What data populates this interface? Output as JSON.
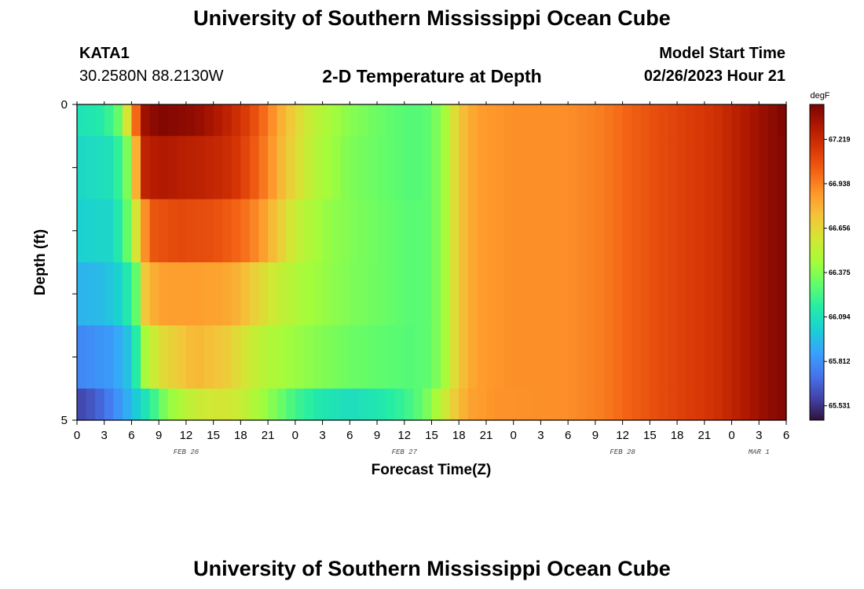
{
  "header": {
    "title": "University of Southern Mississippi Ocean Cube",
    "station": "KATA1",
    "coords": "30.2580N  88.2130W",
    "plot_title": "2-D Temperature at Depth",
    "model_label": "Model Start Time",
    "model_time": "02/26/2023 Hour 21"
  },
  "footer": {
    "title": "University of Southern Mississippi Ocean Cube"
  },
  "chart_data": {
    "type": "heatmap",
    "xlabel": "Forecast Time(Z)",
    "ylabel": "Depth (ft)",
    "x_unit": "hours since FEB 26 00Z",
    "xlim": [
      0,
      78
    ],
    "ylim": [
      0,
      5
    ],
    "x_tick_values": [
      0,
      3,
      6,
      9,
      12,
      15,
      18,
      21,
      24,
      27,
      30,
      33,
      36,
      39,
      42,
      45,
      48,
      51,
      54,
      57,
      60,
      63,
      66,
      69,
      72,
      75,
      78
    ],
    "x_tick_labels": [
      "0",
      "3",
      "6",
      "9",
      "12",
      "15",
      "18",
      "21",
      "0",
      "3",
      "6",
      "9",
      "12",
      "15",
      "18",
      "21",
      "0",
      "3",
      "6",
      "9",
      "12",
      "15",
      "18",
      "21",
      "0",
      "3",
      "6"
    ],
    "day_labels": [
      {
        "label": "FEB 26",
        "x": 12
      },
      {
        "label": "FEB 27",
        "x": 36
      },
      {
        "label": "FEB 28",
        "x": 60
      },
      {
        "label": "MAR 1",
        "x": 75
      }
    ],
    "y_tick_values": [
      0,
      1,
      2,
      3,
      4,
      5
    ],
    "y_tick_labels": [
      "0",
      "",
      "",
      "",
      "",
      "5"
    ],
    "depth_layers": [
      0,
      0.5,
      1.5,
      2.5,
      3.5,
      4.5,
      5
    ],
    "colorbar": {
      "unit": "degF",
      "vmin": 65.44,
      "vmax": 67.44,
      "tick_values": [
        65.531,
        65.812,
        66.094,
        66.375,
        66.656,
        66.938,
        67.219
      ],
      "tick_labels": [
        "65.531",
        "65.812",
        "66.094",
        "66.375",
        "66.656",
        "66.938",
        "67.219"
      ],
      "colormap": [
        "#30123b",
        "#4145ab",
        "#4675ed",
        "#39a2fc",
        "#1bcfd4",
        "#24eca6",
        "#61fc6c",
        "#a4fc3b",
        "#d1e834",
        "#f3c63a",
        "#fe9b2d",
        "#f36315",
        "#d93806",
        "#b11901",
        "#7a0402"
      ]
    },
    "layer_profiles": [
      {
        "depth_range": [
          0,
          0.5
        ],
        "points": [
          [
            0,
            66.1
          ],
          [
            3,
            66.15
          ],
          [
            4.5,
            66.3
          ],
          [
            5.5,
            66.6
          ],
          [
            6.5,
            67.0
          ],
          [
            7.5,
            67.35
          ],
          [
            9,
            67.42
          ],
          [
            13,
            67.38
          ],
          [
            16,
            67.28
          ],
          [
            19,
            67.12
          ],
          [
            21,
            66.95
          ],
          [
            23,
            66.75
          ],
          [
            26,
            66.52
          ],
          [
            30,
            66.38
          ],
          [
            34,
            66.3
          ],
          [
            37,
            66.26
          ],
          [
            39,
            66.3
          ],
          [
            40.5,
            66.45
          ],
          [
            42,
            66.72
          ],
          [
            44,
            66.86
          ],
          [
            48,
            66.9
          ],
          [
            54,
            66.9
          ],
          [
            58,
            66.95
          ],
          [
            62,
            67.05
          ],
          [
            66,
            67.12
          ],
          [
            70,
            67.18
          ],
          [
            73,
            67.28
          ],
          [
            76,
            67.38
          ],
          [
            77.5,
            67.42
          ],
          [
            78,
            67.42
          ]
        ]
      },
      {
        "depth_range": [
          0.5,
          1.5
        ],
        "points": [
          [
            0,
            66.05
          ],
          [
            4,
            66.1
          ],
          [
            5.5,
            66.35
          ],
          [
            6.5,
            66.8
          ],
          [
            7.5,
            67.25
          ],
          [
            9,
            67.3
          ],
          [
            14,
            67.25
          ],
          [
            17,
            67.2
          ],
          [
            19,
            67.08
          ],
          [
            21,
            66.92
          ],
          [
            23,
            66.72
          ],
          [
            26,
            66.5
          ],
          [
            30,
            66.36
          ],
          [
            34,
            66.3
          ],
          [
            37,
            66.26
          ],
          [
            39,
            66.3
          ],
          [
            40.5,
            66.45
          ],
          [
            42,
            66.72
          ],
          [
            44,
            66.86
          ],
          [
            48,
            66.9
          ],
          [
            54,
            66.9
          ],
          [
            58,
            66.95
          ],
          [
            62,
            67.05
          ],
          [
            66,
            67.12
          ],
          [
            70,
            67.18
          ],
          [
            73,
            67.28
          ],
          [
            76,
            67.38
          ],
          [
            78,
            67.42
          ]
        ]
      },
      {
        "depth_range": [
          1.5,
          2.5
        ],
        "points": [
          [
            0,
            66.02
          ],
          [
            4,
            66.05
          ],
          [
            5.5,
            66.3
          ],
          [
            6.5,
            66.6
          ],
          [
            8,
            67.05
          ],
          [
            11,
            67.1
          ],
          [
            15,
            67.08
          ],
          [
            18,
            67.0
          ],
          [
            20,
            66.9
          ],
          [
            22,
            66.72
          ],
          [
            24,
            66.55
          ],
          [
            27,
            66.42
          ],
          [
            31,
            66.35
          ],
          [
            35,
            66.3
          ],
          [
            37,
            66.27
          ],
          [
            39,
            66.3
          ],
          [
            40.5,
            66.45
          ],
          [
            42,
            66.72
          ],
          [
            44,
            66.86
          ],
          [
            48,
            66.9
          ],
          [
            54,
            66.9
          ],
          [
            58,
            66.95
          ],
          [
            62,
            67.05
          ],
          [
            66,
            67.12
          ],
          [
            70,
            67.18
          ],
          [
            73,
            67.28
          ],
          [
            76,
            67.38
          ],
          [
            78,
            67.42
          ]
        ]
      },
      {
        "depth_range": [
          2.5,
          3.5
        ],
        "points": [
          [
            0,
            65.92
          ],
          [
            3,
            65.95
          ],
          [
            5,
            66.05
          ],
          [
            6.5,
            66.3
          ],
          [
            7.5,
            66.72
          ],
          [
            9,
            66.85
          ],
          [
            13,
            66.86
          ],
          [
            16,
            66.84
          ],
          [
            18,
            66.78
          ],
          [
            20,
            66.66
          ],
          [
            22,
            66.55
          ],
          [
            25,
            66.45
          ],
          [
            30,
            66.36
          ],
          [
            35,
            66.3
          ],
          [
            37,
            66.27
          ],
          [
            39,
            66.3
          ],
          [
            40.5,
            66.45
          ],
          [
            42,
            66.72
          ],
          [
            44,
            66.86
          ],
          [
            48,
            66.9
          ],
          [
            54,
            66.9
          ],
          [
            58,
            66.95
          ],
          [
            62,
            67.05
          ],
          [
            66,
            67.12
          ],
          [
            70,
            67.18
          ],
          [
            73,
            67.28
          ],
          [
            76,
            67.38
          ],
          [
            78,
            67.42
          ]
        ]
      },
      {
        "depth_range": [
          3.5,
          4.5
        ],
        "points": [
          [
            0,
            65.78
          ],
          [
            4,
            65.85
          ],
          [
            6,
            66.0
          ],
          [
            7.5,
            66.45
          ],
          [
            9,
            66.62
          ],
          [
            13,
            66.78
          ],
          [
            16,
            66.72
          ],
          [
            18,
            66.62
          ],
          [
            20,
            66.52
          ],
          [
            22,
            66.46
          ],
          [
            25,
            66.4
          ],
          [
            30,
            66.32
          ],
          [
            35,
            66.28
          ],
          [
            37,
            66.27
          ],
          [
            39,
            66.3
          ],
          [
            40.5,
            66.45
          ],
          [
            42,
            66.72
          ],
          [
            44,
            66.86
          ],
          [
            48,
            66.9
          ],
          [
            54,
            66.9
          ],
          [
            58,
            66.95
          ],
          [
            62,
            67.05
          ],
          [
            66,
            67.12
          ],
          [
            70,
            67.18
          ],
          [
            73,
            67.28
          ],
          [
            76,
            67.38
          ],
          [
            78,
            67.42
          ]
        ]
      },
      {
        "depth_range": [
          4.5,
          5
        ],
        "points": [
          [
            0,
            65.58
          ],
          [
            2,
            65.65
          ],
          [
            4,
            65.78
          ],
          [
            6,
            65.95
          ],
          [
            8,
            66.15
          ],
          [
            10,
            66.4
          ],
          [
            13,
            66.55
          ],
          [
            16,
            66.6
          ],
          [
            18,
            66.55
          ],
          [
            21,
            66.4
          ],
          [
            24,
            66.22
          ],
          [
            27,
            66.12
          ],
          [
            30,
            66.08
          ],
          [
            33,
            66.12
          ],
          [
            36,
            66.2
          ],
          [
            38,
            66.3
          ],
          [
            40,
            66.5
          ],
          [
            41.5,
            66.7
          ],
          [
            43,
            66.84
          ],
          [
            46,
            66.89
          ],
          [
            54,
            66.9
          ],
          [
            58,
            66.95
          ],
          [
            62,
            67.05
          ],
          [
            66,
            67.12
          ],
          [
            70,
            67.18
          ],
          [
            73,
            67.28
          ],
          [
            76,
            67.38
          ],
          [
            78,
            67.42
          ]
        ]
      }
    ]
  }
}
